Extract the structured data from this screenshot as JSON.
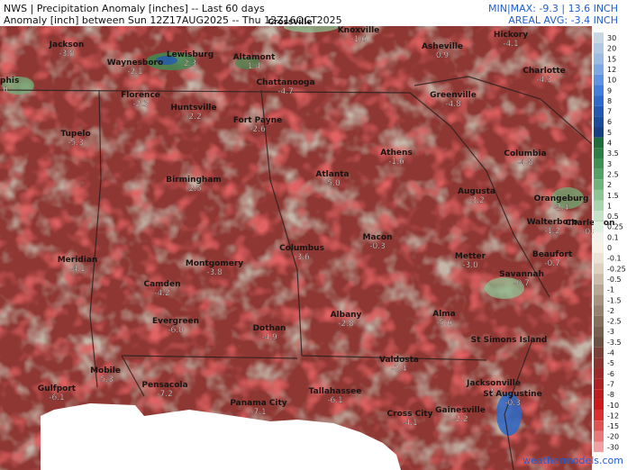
{
  "header": {
    "title": "NWS | Precipitation Anomaly [inches] -- Last 60 days",
    "subtitle": "Anomaly [inch] between Sun 12Z17AUG2025 -- Thu 12Z16OCT2025",
    "minmax": "MIN|MAX: -9.3 | 13.6 INCH",
    "areal_avg": "AREAL AVG: -3.4 INCH"
  },
  "cities": [
    {
      "name": "Jackson",
      "value": "-3.8"
    },
    {
      "name": "Crossville"
    },
    {
      "name": "Knoxville",
      "value": "-1.6"
    },
    {
      "name": "Asheville",
      "value": "0.9"
    },
    {
      "name": "Hickory",
      "value": "-4.1"
    },
    {
      "name": "mphis",
      "value": "0"
    },
    {
      "name": "Waynesboro",
      "value": "-2.1"
    },
    {
      "name": "Lewisburg",
      "value": "2.3"
    },
    {
      "name": "Altamont",
      "value": "1.4"
    },
    {
      "name": "Charlotte",
      "value": "-4.3"
    },
    {
      "name": "Chattanooga",
      "value": "-4.7"
    },
    {
      "name": "Florence",
      "value": "-2.3"
    },
    {
      "name": "Huntsville",
      "value": "-2.2"
    },
    {
      "name": "Greenville",
      "value": "-4.8"
    },
    {
      "name": "Fort Payne",
      "value": "-2.6"
    },
    {
      "name": "Tupelo",
      "value": "-5.3"
    },
    {
      "name": "Athens",
      "value": "-1.6"
    },
    {
      "name": "Columbia",
      "value": "-4.8"
    },
    {
      "name": "Birmingham",
      "value": "-2.5"
    },
    {
      "name": "Atlanta",
      "value": "-5.0"
    },
    {
      "name": "Augusta",
      "value": "-3.2"
    },
    {
      "name": "Orangeburg",
      "value": "-2.4"
    },
    {
      "name": "Walterboro",
      "value": "-1.2"
    },
    {
      "name": "Charleston",
      "value": "-0.8"
    },
    {
      "name": "Macon",
      "value": "-0.3"
    },
    {
      "name": "Columbus",
      "value": "-3.6"
    },
    {
      "name": "Meridian",
      "value": "-4.1"
    },
    {
      "name": "Metter",
      "value": "-3.0"
    },
    {
      "name": "Beaufort",
      "value": "-0.7"
    },
    {
      "name": "Montgomery",
      "value": "-3.8"
    },
    {
      "name": "Savannah",
      "value": "-0.7"
    },
    {
      "name": "Camden",
      "value": "-4.2"
    },
    {
      "name": "Albany",
      "value": "-2.8"
    },
    {
      "name": "Alma",
      "value": "-5.6"
    },
    {
      "name": "Evergreen",
      "value": "-6.0"
    },
    {
      "name": "Dothan",
      "value": "-4.9"
    },
    {
      "name": "St Simons Island"
    },
    {
      "name": "Valdosta",
      "value": "-2.4"
    },
    {
      "name": "Gulfport",
      "value": "-6.1"
    },
    {
      "name": "Mobile",
      "value": "-5.3"
    },
    {
      "name": "Pensacola",
      "value": "-7.2"
    },
    {
      "name": "Jacksonville",
      "value": "-3.1"
    },
    {
      "name": "Tallahassee",
      "value": "-6.1"
    },
    {
      "name": "Panama City",
      "value": "-7.1"
    },
    {
      "name": "St Augustine",
      "value": "-0.3"
    },
    {
      "name": "Cross City",
      "value": "-4.1"
    },
    {
      "name": "Gainesville",
      "value": "-2.2"
    }
  ],
  "legend": [
    {
      "label": "30",
      "color": "#c9d6e3"
    },
    {
      "label": "20",
      "color": "#b3c8e2"
    },
    {
      "label": "15",
      "color": "#9cbbe2"
    },
    {
      "label": "12",
      "color": "#7ea8e2"
    },
    {
      "label": "10",
      "color": "#5f92e0"
    },
    {
      "label": "9",
      "color": "#427dd8"
    },
    {
      "label": "8",
      "color": "#2d69c8"
    },
    {
      "label": "7",
      "color": "#2258b2"
    },
    {
      "label": "6",
      "color": "#1b4b9b"
    },
    {
      "label": "5",
      "color": "#163f82"
    },
    {
      "label": "4",
      "color": "#1f6b3a"
    },
    {
      "label": "3.5",
      "color": "#2e7d45"
    },
    {
      "label": "3",
      "color": "#3f8f52"
    },
    {
      "label": "2.5",
      "color": "#55a065"
    },
    {
      "label": "2",
      "color": "#6fb37a"
    },
    {
      "label": "1.5",
      "color": "#8cc494"
    },
    {
      "label": "1",
      "color": "#a8d4ad"
    },
    {
      "label": "0.5",
      "color": "#c4e3c6"
    },
    {
      "label": "0.25",
      "color": "#dcefdc"
    },
    {
      "label": "0.1",
      "color": "#f1f1ea"
    },
    {
      "label": "0",
      "color": "#f6f0e7"
    },
    {
      "label": "-0.1",
      "color": "#ece2d4"
    },
    {
      "label": "-0.25",
      "color": "#ddd0bf"
    },
    {
      "label": "-0.5",
      "color": "#cbbba8"
    },
    {
      "label": "-1",
      "color": "#b8a693"
    },
    {
      "label": "-1.5",
      "color": "#a6927f"
    },
    {
      "label": "-2",
      "color": "#94806d"
    },
    {
      "label": "-2.5",
      "color": "#846f5d"
    },
    {
      "label": "-3",
      "color": "#765f4f"
    },
    {
      "label": "-3.5",
      "color": "#6c5043"
    },
    {
      "label": "-4",
      "color": "#7a3f38"
    },
    {
      "label": "-5",
      "color": "#8a3431"
    },
    {
      "label": "-6",
      "color": "#9a2a2a"
    },
    {
      "label": "-7",
      "color": "#aa2224"
    },
    {
      "label": "-8",
      "color": "#bb1c1f"
    },
    {
      "label": "-10",
      "color": "#cc1a1a"
    },
    {
      "label": "-12",
      "color": "#d83030"
    },
    {
      "label": "-15",
      "color": "#e05252"
    },
    {
      "label": "-20",
      "color": "#e87878"
    },
    {
      "label": "-30",
      "color": "#f0a0a0"
    }
  ],
  "footer": "weathermodels.com"
}
